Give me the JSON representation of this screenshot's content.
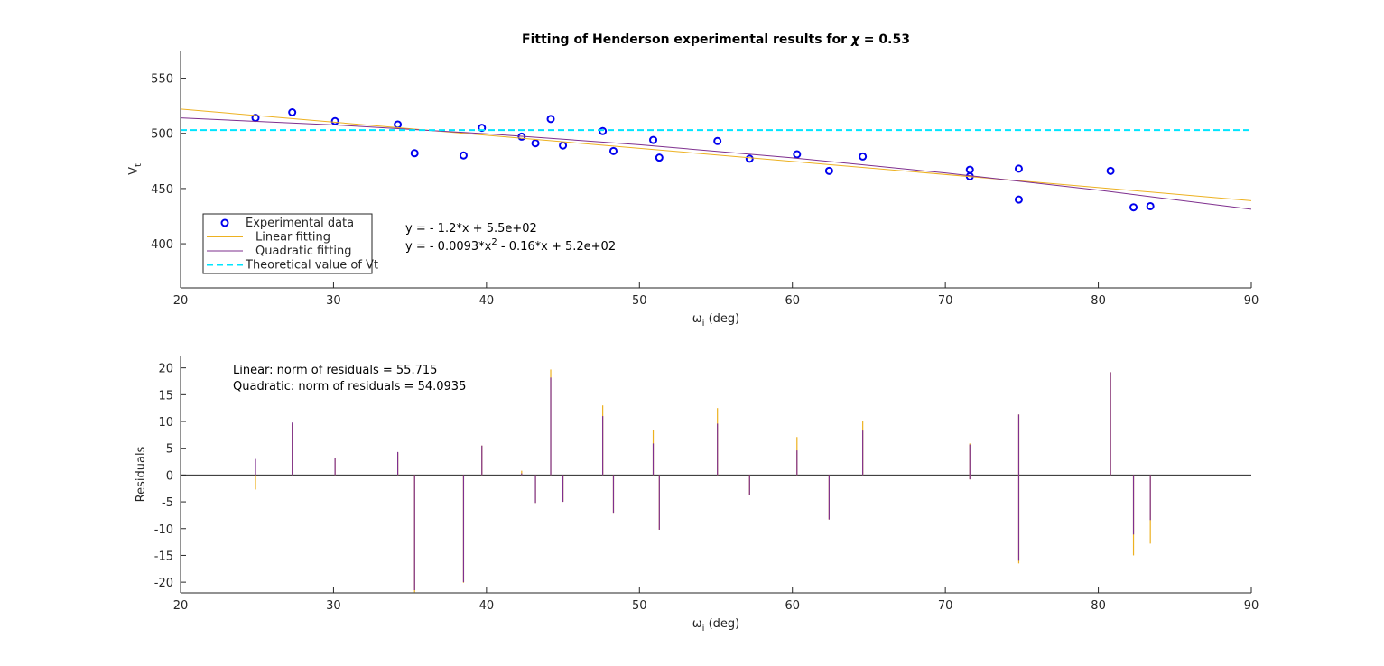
{
  "chart_data": [
    {
      "type": "scatter",
      "title": [
        {
          "text": "Fitting of Henderson experimental results for "
        },
        {
          "text": "χ",
          "italic": true
        },
        {
          "text": " = 0.53"
        }
      ],
      "xlabel": [
        {
          "text": "ω"
        },
        {
          "text": "i",
          "sub": true
        },
        {
          "text": " (deg)"
        }
      ],
      "ylabel": [
        {
          "text": "V"
        },
        {
          "text": "t",
          "sub": true
        }
      ],
      "xlim": [
        20,
        90
      ],
      "xticks": [
        20,
        30,
        40,
        50,
        60,
        70,
        80,
        90
      ],
      "ylim": [
        360,
        575
      ],
      "yticks": [
        400,
        450,
        500,
        550
      ],
      "legend": "lower left",
      "series": [
        {
          "name": "Experimental data",
          "style": "markers",
          "color": "#0000ee",
          "x": [
            24.9,
            27.3,
            30.1,
            34.2,
            35.3,
            38.5,
            39.7,
            42.3,
            43.2,
            44.2,
            45.0,
            47.6,
            48.3,
            50.9,
            51.3,
            55.1,
            57.2,
            60.3,
            62.4,
            64.6,
            71.6,
            71.6,
            74.8,
            74.8,
            80.8,
            82.3,
            83.4
          ],
          "values": [
            514,
            519,
            511,
            508,
            482,
            480,
            505,
            497,
            491,
            513,
            489,
            502,
            484,
            494,
            478,
            493,
            477,
            481,
            466,
            479,
            467,
            461,
            468,
            440,
            466,
            433,
            434
          ]
        },
        {
          "name": "Linear fitting",
          "style": "line",
          "color": "#edb120",
          "x": [
            20,
            90
          ],
          "values": [
            522,
            439
          ]
        },
        {
          "name": "Quadratic fitting",
          "style": "line",
          "color": "#7e2f8e",
          "x": [
            20,
            30,
            40,
            50,
            60,
            70,
            80,
            90
          ],
          "values": [
            514.0,
            507.7,
            499.6,
            489.7,
            477.8,
            464.1,
            448.6,
            431.2
          ]
        },
        {
          "name": "Theoretical value of Vt",
          "style": "dashed",
          "color": "#00e5ff",
          "x": [
            20,
            90
          ],
          "values": [
            503,
            503
          ]
        }
      ],
      "annotations": [
        [
          {
            "text": "y = - 1.2*x + 5.5e+02"
          }
        ],
        [
          {
            "text": "y = - 0.0093*x"
          },
          {
            "text": "2",
            "sup": true
          },
          {
            "text": " - 0.16*x + 5.2e+02"
          }
        ]
      ]
    },
    {
      "type": "stem",
      "xlabel": [
        {
          "text": "ω"
        },
        {
          "text": "i",
          "sub": true
        },
        {
          "text": " (deg)"
        }
      ],
      "ylabel": [
        {
          "text": "Residuals"
        }
      ],
      "xlim": [
        20,
        90
      ],
      "xticks": [
        20,
        30,
        40,
        50,
        60,
        70,
        80,
        90
      ],
      "ylim": [
        -22,
        22.3
      ],
      "yticks": [
        -20,
        -15,
        -10,
        -5,
        0,
        5,
        10,
        15,
        20
      ],
      "x": [
        24.9,
        27.3,
        30.1,
        34.2,
        35.3,
        38.5,
        39.7,
        42.3,
        43.2,
        44.2,
        45.0,
        47.6,
        48.3,
        50.9,
        51.3,
        55.1,
        57.2,
        60.3,
        62.4,
        64.6,
        71.6,
        71.6,
        74.8,
        74.8,
        80.8,
        82.3,
        83.4
      ],
      "series": [
        {
          "color": "#edb120",
          "values": [
            -2.7,
            9.5,
            3.2,
            4.2,
            -21.9,
            -20.1,
            5.5,
            0.8,
            -5.2,
            19.7,
            -5.0,
            13.0,
            -7.2,
            8.4,
            -10.2,
            12.5,
            -3.7,
            7.1,
            -8.3,
            10.0,
            5.9,
            -0.8,
            11.3,
            -16.5,
            19.2,
            -15.0,
            -12.8
          ]
        },
        {
          "color": "#7e2f8e",
          "values": [
            3.0,
            9.8,
            3.2,
            4.3,
            -21.5,
            -20.0,
            5.5,
            0.3,
            -5.2,
            18.2,
            -5.0,
            11.0,
            -7.2,
            5.9,
            -10.2,
            9.6,
            -3.7,
            4.6,
            -8.3,
            8.3,
            5.7,
            -0.8,
            11.3,
            -16.0,
            19.2,
            -11.1,
            -8.4
          ]
        }
      ],
      "annotations": [
        [
          {
            "text": "Linear: norm of residuals = 55.715"
          }
        ],
        [
          {
            "text": "Quadratic: norm of residuals = 54.0935"
          }
        ]
      ]
    }
  ]
}
